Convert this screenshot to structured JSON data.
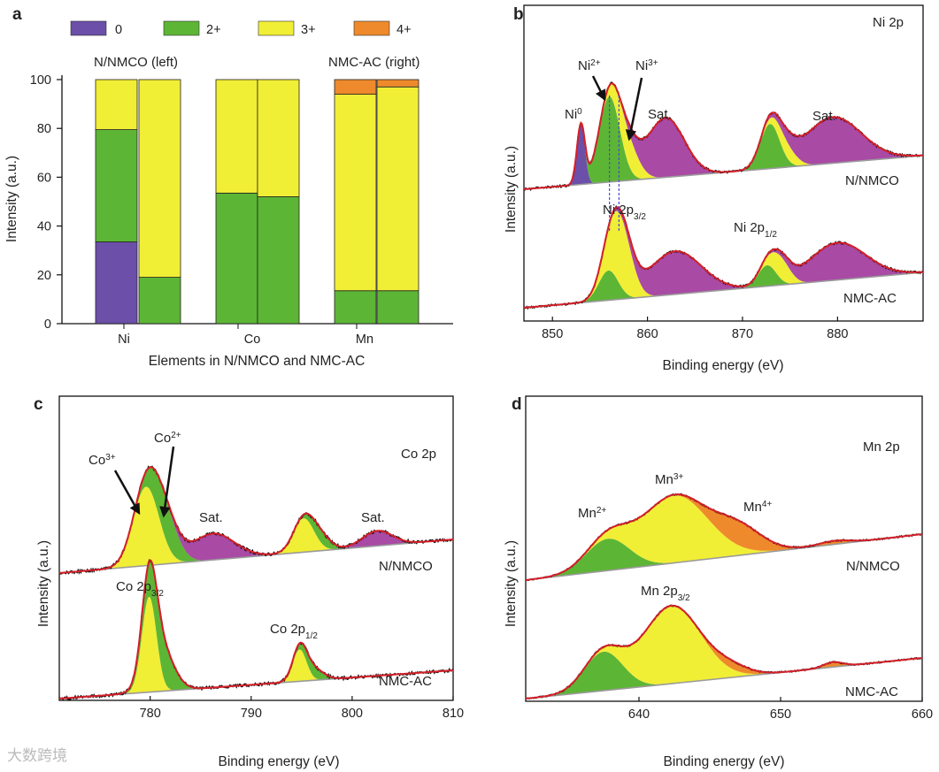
{
  "colors": {
    "purple": "#6b4fa8",
    "green": "#5db535",
    "yellow": "#f1ee36",
    "orange": "#ee8a2b",
    "magenta": "#a94aa5",
    "fit": "#d6202a",
    "baseline": "#9a9a9a",
    "raw": "#111111",
    "ref_line": "#4a4ad8"
  },
  "watermark": "大数跨境",
  "chart_data": [
    {
      "id": "a",
      "panel_label": "a",
      "type": "bar",
      "stacked": true,
      "legend": [
        {
          "key": "v0",
          "label": "0",
          "color": "purple"
        },
        {
          "key": "v2",
          "label": "2+",
          "color": "green"
        },
        {
          "key": "v3",
          "label": "3+",
          "color": "yellow"
        },
        {
          "key": "v4",
          "label": "4+",
          "color": "orange"
        }
      ],
      "legend_position": "top",
      "annotations": [
        "N/NMCO (left)",
        "NMC-AC (right)"
      ],
      "categories": [
        "Ni",
        "Co",
        "Mn"
      ],
      "bars": [
        {
          "element": "Ni",
          "sample": "N/NMCO",
          "v0": 33.5,
          "v2": 46,
          "v3": 20.5,
          "v4": 0
        },
        {
          "element": "Ni",
          "sample": "NMC-AC",
          "v0": 0,
          "v2": 19,
          "v3": 81,
          "v4": 0
        },
        {
          "element": "Co",
          "sample": "N/NMCO",
          "v0": 0,
          "v2": 53.5,
          "v3": 46.5,
          "v4": 0
        },
        {
          "element": "Co",
          "sample": "NMC-AC",
          "v0": 0,
          "v2": 52,
          "v3": 48,
          "v4": 0
        },
        {
          "element": "Mn",
          "sample": "N/NMCO",
          "v0": 0,
          "v2": 13.5,
          "v3": 80.5,
          "v4": 6
        },
        {
          "element": "Mn",
          "sample": "NMC-AC",
          "v0": 0,
          "v2": 13.5,
          "v3": 83.5,
          "v4": 3
        }
      ],
      "ylim": [
        0,
        100
      ],
      "yticks": [
        0,
        20,
        40,
        60,
        80,
        100
      ],
      "xlabel": "Elements in N/NMCO and NMC-AC",
      "ylabel": "Intensity (a.u.)"
    },
    {
      "id": "b",
      "panel_label": "b",
      "type": "line",
      "title": "Ni 2p",
      "xlim": [
        847,
        889
      ],
      "xticks": [
        850,
        860,
        870,
        880
      ],
      "xlabel": "Binding energy (eV)",
      "ylabel": "Intensity (a.u.)",
      "ref_lines": [
        856,
        857
      ],
      "spectra": [
        {
          "sample": "N/NMCO",
          "components": [
            {
              "name": "Ni0",
              "color": "purple",
              "center": 853,
              "fwhm": 1.0,
              "height": 80
            },
            {
              "name": "Ni2+",
              "color": "green",
              "center": 856,
              "fwhm": 2.6,
              "height": 115
            },
            {
              "name": "Ni3+",
              "color": "yellow",
              "center": 857.8,
              "fwhm": 2.8,
              "height": 45
            },
            {
              "name": "Sat.",
              "color": "magenta",
              "center": 861.9,
              "fwhm": 4.6,
              "height": 80
            },
            {
              "name": "Ni2+ 2p1/2",
              "color": "green",
              "center": 872.9,
              "fwhm": 2.4,
              "height": 60
            },
            {
              "name": "Ni3+ 2p1/2",
              "color": "yellow",
              "center": 874.5,
              "fwhm": 2.6,
              "height": 22
            },
            {
              "name": "Sat. 2p1/2",
              "color": "magenta",
              "center": 879.5,
              "fwhm": 7,
              "height": 62
            }
          ],
          "labels": [
            {
              "text": "Ni",
              "sup": "0"
            },
            {
              "text": "Ni",
              "sup": "2+"
            },
            {
              "text": "Ni",
              "sup": "3+"
            },
            {
              "text": "Sat."
            },
            {
              "text": "Sat."
            },
            {
              "text": "N/NMCO"
            }
          ]
        },
        {
          "sample": "NMC-AC",
          "components": [
            {
              "name": "Ni2+",
              "color": "green",
              "center": 855.9,
              "fwhm": 2.4,
              "height": 40
            },
            {
              "name": "Ni3+",
              "color": "yellow",
              "center": 857.1,
              "fwhm": 2.8,
              "height": 95
            },
            {
              "name": "Sat.",
              "color": "magenta",
              "center": 862.9,
              "fwhm": 6.5,
              "height": 58
            },
            {
              "name": "Ni2+ 2p1/2",
              "color": "green",
              "center": 872.6,
              "fwhm": 2.2,
              "height": 28
            },
            {
              "name": "Ni3+ 2p1/2",
              "color": "yellow",
              "center": 874,
              "fwhm": 2.4,
              "height": 30
            },
            {
              "name": "Sat. 2p1/2",
              "color": "magenta",
              "center": 880,
              "fwhm": 7,
              "height": 50
            }
          ],
          "labels": [
            {
              "text": "Ni 2p",
              "sub": "3/2"
            },
            {
              "text": "Ni 2p",
              "sub": "1/2"
            },
            {
              "text": "NMC-AC"
            }
          ]
        }
      ]
    },
    {
      "id": "c",
      "panel_label": "c",
      "type": "line",
      "title": "Co 2p",
      "xlim": [
        771,
        810
      ],
      "xticks": [
        780,
        790,
        800,
        810
      ],
      "xlabel": "Binding energy (eV)",
      "ylabel": "Intensity (a.u.)",
      "spectra": [
        {
          "sample": "N/NMCO",
          "components": [
            {
              "name": "Co3+",
              "color": "yellow",
              "center": 779.6,
              "fwhm": 3.0,
              "height": 105
            },
            {
              "name": "Co2+",
              "color": "green",
              "center": 781.4,
              "fwhm": 3.0,
              "height": 55
            },
            {
              "name": "Sat.",
              "color": "magenta",
              "center": 786.2,
              "fwhm": 5,
              "height": 35
            },
            {
              "name": "Co3+ 2p1/2",
              "color": "yellow",
              "center": 795.2,
              "fwhm": 2.4,
              "height": 45
            },
            {
              "name": "Co2+ 2p1/2",
              "color": "green",
              "center": 796.8,
              "fwhm": 2.4,
              "height": 18
            },
            {
              "name": "Sat. 2p1/2",
              "color": "magenta",
              "center": 802.5,
              "fwhm": 3.5,
              "height": 20
            }
          ],
          "labels": [
            {
              "text": "Co",
              "sup": "3+"
            },
            {
              "text": "Co",
              "sup": "2+"
            },
            {
              "text": "Sat."
            },
            {
              "text": "Sat."
            },
            {
              "text": "N/NMCO"
            }
          ]
        },
        {
          "sample": "NMC-AC",
          "components": [
            {
              "name": "Co3+",
              "color": "yellow",
              "center": 779.9,
              "fwhm": 1.7,
              "height": 120
            },
            {
              "name": "Co2+",
              "color": "green",
              "center": 780.9,
              "fwhm": 3.0,
              "height": 60
            },
            {
              "name": "Co3+ 2p1/2",
              "color": "yellow",
              "center": 794.8,
              "fwhm": 1.6,
              "height": 40
            },
            {
              "name": "Co2+ 2p1/2",
              "color": "green",
              "center": 796,
              "fwhm": 2.4,
              "height": 16
            }
          ],
          "labels": [
            {
              "text": "Co 2p",
              "sub": "3/2"
            },
            {
              "text": "Co 2p",
              "sub": "1/2"
            },
            {
              "text": "NMC-AC"
            }
          ]
        }
      ]
    },
    {
      "id": "d",
      "panel_label": "d",
      "type": "line",
      "title": "Mn 2p",
      "xlim": [
        632,
        660
      ],
      "xticks": [
        640,
        650,
        660
      ],
      "xlabel": "Binding energy (eV)",
      "ylabel": "Intensity (a.u.)",
      "spectra": [
        {
          "sample": "N/NMCO",
          "components": [
            {
              "name": "Mn2+",
              "color": "green",
              "center": 637.8,
              "fwhm": 3.6,
              "height": 45
            },
            {
              "name": "Mn3+",
              "color": "yellow",
              "center": 642.5,
              "fwhm": 5.5,
              "height": 95
            },
            {
              "name": "Mn4+",
              "color": "orange",
              "center": 647,
              "fwhm": 4,
              "height": 35
            },
            {
              "name": "Mn sat",
              "color": "orange",
              "center": 653.8,
              "fwhm": 2.5,
              "height": 5
            }
          ],
          "labels": [
            {
              "text": "Mn",
              "sup": "2+"
            },
            {
              "text": "Mn",
              "sup": "3+"
            },
            {
              "text": "Mn",
              "sup": "4+"
            },
            {
              "text": "N/NMCO"
            }
          ]
        },
        {
          "sample": "NMC-AC",
          "components": [
            {
              "name": "Mn2+",
              "color": "green",
              "center": 637.5,
              "fwhm": 3.2,
              "height": 55
            },
            {
              "name": "Mn3+",
              "color": "yellow",
              "center": 642.3,
              "fwhm": 4.8,
              "height": 110
            },
            {
              "name": "Mn4+",
              "color": "orange",
              "center": 646.5,
              "fwhm": 3,
              "height": 12
            },
            {
              "name": "Mn sat",
              "color": "orange",
              "center": 653.7,
              "fwhm": 1.6,
              "height": 7
            }
          ],
          "labels": [
            {
              "text": "Mn 2p",
              "sub": "3/2"
            },
            {
              "text": "NMC-AC"
            }
          ]
        }
      ]
    }
  ]
}
